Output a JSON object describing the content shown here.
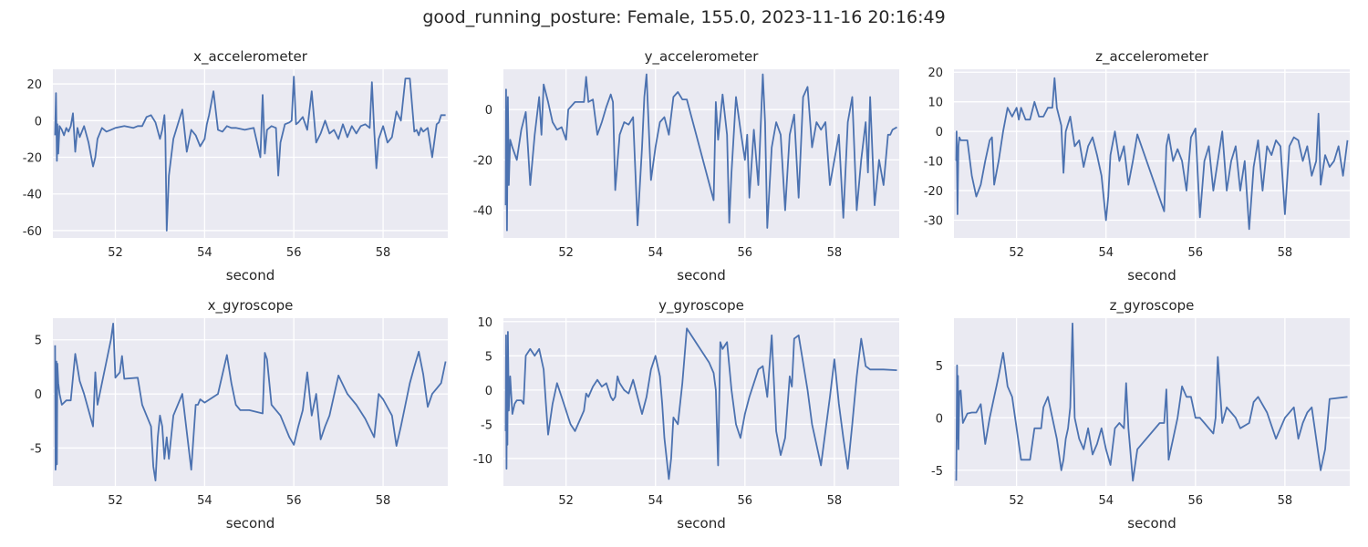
{
  "figure": {
    "title": "good_running_posture: Female, 155.0, 2023-11-16 20:16:49"
  },
  "style": {
    "background": "#ffffff",
    "axes_face": "#eaeaf2",
    "grid": "#ffffff",
    "line": "#4c72b0",
    "text": "#262626"
  },
  "chart_data": [
    {
      "type": "line",
      "title": "x_accelerometer",
      "xlabel": "second",
      "ylabel": "",
      "xlim": [
        50.6,
        59.45
      ],
      "ylim": [
        -64,
        28
      ],
      "xticks": [
        52,
        54,
        56,
        58
      ],
      "yticks": [
        20,
        0,
        -20,
        -40,
        -60
      ],
      "grid": true,
      "x": [
        50.65,
        50.67,
        50.69,
        50.7,
        50.72,
        50.75,
        50.8,
        50.85,
        50.9,
        50.95,
        51.0,
        51.05,
        51.1,
        51.15,
        51.2,
        51.3,
        51.4,
        51.5,
        51.55,
        51.6,
        51.7,
        51.8,
        51.9,
        52.0,
        52.2,
        52.4,
        52.5,
        52.6,
        52.7,
        52.8,
        52.9,
        53.0,
        53.05,
        53.1,
        53.12,
        53.15,
        53.2,
        53.3,
        53.4,
        53.5,
        53.6,
        53.7,
        53.8,
        53.9,
        54.0,
        54.05,
        54.1,
        54.2,
        54.3,
        54.4,
        54.5,
        54.6,
        54.7,
        54.9,
        55.1,
        55.25,
        55.3,
        55.35,
        55.4,
        55.45,
        55.5,
        55.6,
        55.65,
        55.7,
        55.8,
        55.9,
        55.95,
        56.0,
        56.05,
        56.1,
        56.2,
        56.3,
        56.4,
        56.5,
        56.6,
        56.7,
        56.8,
        56.9,
        57.0,
        57.1,
        57.2,
        57.3,
        57.4,
        57.5,
        57.6,
        57.7,
        57.75,
        57.8,
        57.85,
        57.9,
        58.0,
        58.1,
        58.2,
        58.3,
        58.4,
        58.5,
        58.6,
        58.7,
        58.75,
        58.8,
        58.85,
        58.9,
        59.0,
        59.1,
        59.2,
        59.25,
        59.3,
        59.4
      ],
      "values": [
        -8,
        15,
        -22,
        -2,
        -18,
        -3,
        -5,
        -8,
        -4,
        -6,
        -3,
        4,
        -17,
        -4,
        -9,
        -3,
        -12,
        -25,
        -20,
        -10,
        -4,
        -6,
        -5,
        -4,
        -3,
        -4,
        -3,
        -3,
        2,
        3,
        -1,
        -10,
        -5,
        3,
        -8,
        -60,
        -30,
        -10,
        -2,
        6,
        -17,
        -5,
        -8,
        -14,
        -10,
        -2,
        3,
        16,
        -5,
        -6,
        -3,
        -4,
        -4,
        -5,
        -4,
        -20,
        14,
        -18,
        -5,
        -4,
        -3,
        -4,
        -30,
        -12,
        -2,
        -1,
        0,
        24,
        -2,
        -1,
        2,
        -5,
        16,
        -12,
        -7,
        0,
        -7,
        -5,
        -10,
        -2,
        -9,
        -3,
        -7,
        -3,
        -2,
        -4,
        21,
        -5,
        -26,
        -10,
        -3,
        -12,
        -9,
        5,
        0,
        23,
        23,
        -6,
        -5,
        -8,
        -4,
        -6,
        -4,
        -20,
        -2,
        -1,
        3,
        3
      ]
    },
    {
      "type": "line",
      "title": "y_accelerometer",
      "xlabel": "second",
      "ylabel": "",
      "xlim": [
        50.6,
        59.45
      ],
      "ylim": [
        -51,
        16
      ],
      "xticks": [
        52,
        54,
        56,
        58
      ],
      "yticks": [
        0,
        -20,
        -40
      ],
      "grid": true,
      "x": [
        50.65,
        50.66,
        50.68,
        50.7,
        50.72,
        50.75,
        50.8,
        50.9,
        51.0,
        51.1,
        51.2,
        51.3,
        51.4,
        51.45,
        51.5,
        51.6,
        51.7,
        51.8,
        51.9,
        52.0,
        52.05,
        52.1,
        52.2,
        52.4,
        52.45,
        52.5,
        52.6,
        52.7,
        52.8,
        52.9,
        53.0,
        53.05,
        53.1,
        53.2,
        53.3,
        53.4,
        53.5,
        53.6,
        53.7,
        53.75,
        53.8,
        53.9,
        54.0,
        54.1,
        54.2,
        54.3,
        54.4,
        54.5,
        54.6,
        54.7,
        55.3,
        55.35,
        55.4,
        55.5,
        55.6,
        55.65,
        55.7,
        55.8,
        55.9,
        56.0,
        56.05,
        56.1,
        56.2,
        56.3,
        56.4,
        56.45,
        56.5,
        56.6,
        56.7,
        56.8,
        56.9,
        57.0,
        57.1,
        57.2,
        57.3,
        57.4,
        57.5,
        57.6,
        57.7,
        57.8,
        57.9,
        58.0,
        58.1,
        58.2,
        58.3,
        58.4,
        58.5,
        58.6,
        58.7,
        58.75,
        58.8,
        58.9,
        59.0,
        59.1,
        59.2,
        59.25,
        59.3,
        59.4
      ],
      "values": [
        -38,
        8,
        -48,
        5,
        -30,
        -12,
        -15,
        -20,
        -8,
        -1,
        -30,
        -10,
        5,
        -10,
        10,
        3,
        -5,
        -8,
        -7,
        -12,
        0,
        1,
        3,
        3,
        13,
        3,
        4,
        -10,
        -5,
        1,
        6,
        3,
        -32,
        -10,
        -5,
        -6,
        -3,
        -46,
        -15,
        5,
        14,
        -28,
        -15,
        -5,
        -3,
        -10,
        5,
        7,
        4,
        4,
        -36,
        3,
        -12,
        6,
        -10,
        -45,
        -25,
        5,
        -8,
        -20,
        -10,
        -35,
        -8,
        -30,
        14,
        -5,
        -47,
        -15,
        -5,
        -10,
        -40,
        -10,
        -2,
        -35,
        5,
        9,
        -15,
        -5,
        -8,
        -5,
        -30,
        -20,
        -10,
        -43,
        -5,
        5,
        -40,
        -20,
        -5,
        -25,
        5,
        -38,
        -20,
        -30,
        -10,
        -10,
        -8,
        -7
      ]
    },
    {
      "type": "line",
      "title": "z_accelerometer",
      "xlabel": "second",
      "ylabel": "",
      "xlim": [
        50.6,
        59.45
      ],
      "ylim": [
        -36,
        21
      ],
      "xticks": [
        52,
        54,
        56,
        58
      ],
      "yticks": [
        20,
        10,
        0,
        -10,
        -20,
        -30
      ],
      "grid": true,
      "x": [
        50.65,
        50.66,
        50.68,
        50.7,
        50.72,
        50.75,
        50.8,
        50.9,
        51.0,
        51.1,
        51.2,
        51.3,
        51.4,
        51.45,
        51.5,
        51.6,
        51.7,
        51.8,
        51.9,
        52.0,
        52.05,
        52.1,
        52.2,
        52.3,
        52.4,
        52.5,
        52.6,
        52.7,
        52.8,
        52.85,
        52.9,
        53.0,
        53.05,
        53.1,
        53.2,
        53.3,
        53.4,
        53.5,
        53.6,
        53.7,
        53.8,
        53.9,
        54.0,
        54.05,
        54.1,
        54.2,
        54.3,
        54.4,
        54.5,
        54.6,
        54.7,
        55.3,
        55.35,
        55.4,
        55.5,
        55.6,
        55.7,
        55.8,
        55.9,
        56.0,
        56.1,
        56.2,
        56.3,
        56.4,
        56.5,
        56.6,
        56.7,
        56.8,
        56.9,
        57.0,
        57.1,
        57.2,
        57.3,
        57.4,
        57.5,
        57.6,
        57.7,
        57.8,
        57.9,
        58.0,
        58.1,
        58.2,
        58.3,
        58.4,
        58.5,
        58.6,
        58.7,
        58.75,
        58.8,
        58.9,
        59.0,
        59.1,
        59.2,
        59.3,
        59.4
      ],
      "values": [
        -10,
        0,
        -28,
        -5,
        -2,
        -3,
        -3,
        -3,
        -15,
        -22,
        -18,
        -10,
        -3,
        -2,
        -18,
        -10,
        0,
        8,
        5,
        8,
        4,
        8,
        4,
        4,
        10,
        5,
        5,
        8,
        8,
        18,
        8,
        2,
        -14,
        0,
        5,
        -5,
        -3,
        -12,
        -5,
        -2,
        -8,
        -15,
        -30,
        -22,
        -8,
        0,
        -10,
        -5,
        -18,
        -10,
        -1,
        -27,
        -5,
        -1,
        -10,
        -6,
        -10,
        -20,
        -2,
        1,
        -29,
        -10,
        -5,
        -20,
        -10,
        0,
        -20,
        -10,
        -5,
        -20,
        -10,
        -33,
        -12,
        -3,
        -20,
        -5,
        -8,
        -3,
        -5,
        -28,
        -5,
        -2,
        -3,
        -10,
        -5,
        -15,
        -10,
        6,
        -18,
        -8,
        -12,
        -10,
        -5,
        -15,
        -3
      ]
    },
    {
      "type": "line",
      "title": "x_gyroscope",
      "xlabel": "second",
      "ylabel": "",
      "xlim": [
        50.6,
        59.45
      ],
      "ylim": [
        -8.5,
        7
      ],
      "xticks": [
        52,
        54,
        56,
        58
      ],
      "yticks": [
        5,
        0,
        -5
      ],
      "grid": true,
      "x": [
        50.65,
        50.66,
        50.67,
        50.68,
        50.69,
        50.7,
        50.72,
        50.75,
        50.8,
        50.9,
        51.0,
        51.1,
        51.2,
        51.3,
        51.4,
        51.5,
        51.55,
        51.6,
        51.7,
        51.8,
        51.9,
        51.95,
        52.0,
        52.1,
        52.15,
        52.2,
        52.5,
        52.6,
        52.7,
        52.8,
        52.85,
        52.9,
        52.95,
        53.0,
        53.05,
        53.1,
        53.15,
        53.2,
        53.3,
        53.5,
        53.7,
        53.8,
        53.85,
        53.9,
        54.0,
        54.3,
        54.5,
        54.6,
        54.7,
        54.8,
        55.0,
        55.3,
        55.35,
        55.4,
        55.5,
        55.6,
        55.7,
        55.8,
        55.9,
        56.0,
        56.1,
        56.2,
        56.3,
        56.4,
        56.5,
        56.6,
        56.7,
        56.8,
        57.0,
        57.2,
        57.4,
        57.6,
        57.8,
        57.9,
        58.0,
        58.2,
        58.3,
        58.4,
        58.5,
        58.6,
        58.7,
        58.8,
        58.9,
        59.0,
        59.1,
        59.2,
        59.3,
        59.4
      ],
      "values": [
        4.5,
        -7,
        -6,
        3,
        -6.5,
        2.8,
        1,
        0,
        -1,
        -0.6,
        -0.6,
        3.7,
        1.2,
        0,
        -1.5,
        -3,
        2,
        -1,
        1,
        3,
        5,
        6.5,
        1.5,
        2,
        3.5,
        1.4,
        1.5,
        -1,
        -2,
        -3,
        -6.7,
        -8,
        -4,
        -2,
        -3,
        -6,
        -4,
        -6,
        -2,
        0,
        -7,
        -1,
        -1,
        -0.5,
        -0.8,
        0,
        3.6,
        1,
        -1,
        -1.5,
        -1.5,
        -1.8,
        3.8,
        3.2,
        -1,
        -1.5,
        -2,
        -3,
        -4,
        -4.7,
        -3,
        -1.5,
        2,
        -2,
        0,
        -4.2,
        -3,
        -2,
        1.7,
        0,
        -1,
        -2.3,
        -4,
        0,
        -0.5,
        -2,
        -4.8,
        -3,
        -1,
        1,
        2.5,
        3.9,
        1.8,
        -1.2,
        0,
        0.5,
        1,
        3
      ]
    },
    {
      "type": "line",
      "title": "y_gyroscope",
      "xlabel": "second",
      "ylabel": "",
      "xlim": [
        50.6,
        59.45
      ],
      "ylim": [
        -14,
        10.5
      ],
      "xticks": [
        52,
        54,
        56,
        58
      ],
      "yticks": [
        10,
        5,
        0,
        -5,
        -10
      ],
      "grid": true,
      "x": [
        50.65,
        50.66,
        50.67,
        50.68,
        50.69,
        50.7,
        50.72,
        50.75,
        50.8,
        50.85,
        50.9,
        51.0,
        51.05,
        51.1,
        51.2,
        51.3,
        51.4,
        51.5,
        51.55,
        51.6,
        51.7,
        51.8,
        51.9,
        52.0,
        52.05,
        52.1,
        52.2,
        52.4,
        52.45,
        52.5,
        52.6,
        52.7,
        52.8,
        52.9,
        53.0,
        53.05,
        53.1,
        53.15,
        53.2,
        53.3,
        53.4,
        53.5,
        53.6,
        53.7,
        53.8,
        53.9,
        54.0,
        54.1,
        54.15,
        54.2,
        54.3,
        54.35,
        54.4,
        54.5,
        54.6,
        54.7,
        55.2,
        55.3,
        55.35,
        55.4,
        55.45,
        55.5,
        55.6,
        55.7,
        55.8,
        55.9,
        56.0,
        56.1,
        56.2,
        56.3,
        56.4,
        56.5,
        56.6,
        56.7,
        56.8,
        56.9,
        57.0,
        57.05,
        57.1,
        57.2,
        57.3,
        57.4,
        57.5,
        57.6,
        57.7,
        57.8,
        57.9,
        58.0,
        58.1,
        58.2,
        58.3,
        58.4,
        58.5,
        58.6,
        58.7,
        58.8,
        58.9,
        59.0,
        59.1,
        59.4
      ],
      "values": [
        -6,
        8,
        -11.5,
        2,
        -8,
        8.5,
        -3,
        2,
        -3.5,
        -2,
        -1.5,
        -1.5,
        -2,
        5,
        6,
        5,
        6,
        3,
        -2,
        -6.5,
        -2,
        1,
        -1,
        -3,
        -4,
        -5,
        -6,
        -3,
        -0.5,
        -1,
        0.5,
        1.5,
        0.5,
        1,
        -1,
        -1.5,
        -1,
        2,
        1,
        0,
        -0.5,
        1.5,
        -1,
        -3.5,
        -1,
        3,
        5,
        2,
        -2,
        -7,
        -13,
        -10,
        -4,
        -5,
        1,
        9,
        4,
        2.5,
        0,
        -11,
        7,
        6,
        7,
        0,
        -5,
        -7,
        -3.5,
        -1,
        1,
        3,
        3.5,
        -1,
        8,
        -6,
        -9.5,
        -7,
        2,
        0.5,
        7.5,
        8,
        4,
        0,
        -5,
        -8,
        -11,
        -6,
        -1,
        4.5,
        -2,
        -7,
        -11.5,
        -5,
        2,
        7.5,
        3.5,
        3,
        3,
        3,
        3,
        2.9
      ]
    },
    {
      "type": "line",
      "title": "z_gyroscope",
      "xlabel": "second",
      "ylabel": "",
      "xlim": [
        50.6,
        59.45
      ],
      "ylim": [
        -6.5,
        9.5
      ],
      "xticks": [
        52,
        54,
        56,
        58
      ],
      "yticks": [
        5,
        0,
        -5
      ],
      "grid": true,
      "x": [
        50.65,
        50.66,
        50.67,
        50.68,
        50.69,
        50.7,
        50.72,
        50.75,
        50.8,
        50.9,
        51.0,
        51.1,
        51.2,
        51.3,
        51.4,
        51.5,
        51.55,
        51.6,
        51.7,
        51.8,
        51.9,
        52.0,
        52.1,
        52.2,
        52.3,
        52.4,
        52.5,
        52.55,
        52.6,
        52.7,
        52.8,
        52.9,
        53.0,
        53.05,
        53.1,
        53.15,
        53.2,
        53.25,
        53.3,
        53.4,
        53.5,
        53.6,
        53.7,
        53.8,
        53.9,
        54.0,
        54.1,
        54.2,
        54.3,
        54.4,
        54.45,
        54.5,
        54.6,
        54.7,
        55.2,
        55.3,
        55.35,
        55.4,
        55.45,
        55.5,
        55.6,
        55.7,
        55.8,
        55.9,
        56.0,
        56.1,
        56.2,
        56.3,
        56.4,
        56.45,
        56.5,
        56.6,
        56.7,
        56.8,
        56.9,
        57.0,
        57.2,
        57.3,
        57.4,
        57.6,
        57.8,
        58.0,
        58.2,
        58.3,
        58.4,
        58.5,
        58.6,
        58.7,
        58.8,
        58.9,
        59.0,
        59.4
      ],
      "values": [
        -6,
        -2,
        5,
        -2,
        4,
        -3,
        2.5,
        2.6,
        -0.5,
        0.4,
        0.5,
        0.5,
        1.3,
        -2.5,
        0,
        2,
        3,
        4,
        6.2,
        3,
        2,
        -1,
        -4,
        -4,
        -4,
        -1,
        -1,
        -1,
        1,
        2,
        0,
        -2,
        -5,
        -4,
        -2,
        -1,
        1,
        9,
        0,
        -2,
        -3,
        -1,
        -3.5,
        -2.5,
        -1,
        -3,
        -4.5,
        -1,
        -0.5,
        -1,
        3.3,
        -1,
        -6,
        -3,
        -0.5,
        -0.5,
        2.7,
        -4,
        -3,
        -2,
        0,
        3,
        2,
        2,
        0,
        0,
        -0.5,
        -1,
        -1.5,
        0,
        5.8,
        -0.5,
        1,
        0.5,
        0,
        -1,
        -0.5,
        1.5,
        2,
        0.5,
        -2,
        0,
        1,
        -2,
        -0.5,
        0.5,
        1,
        -2,
        -5,
        -3,
        1.8,
        2
      ]
    }
  ]
}
